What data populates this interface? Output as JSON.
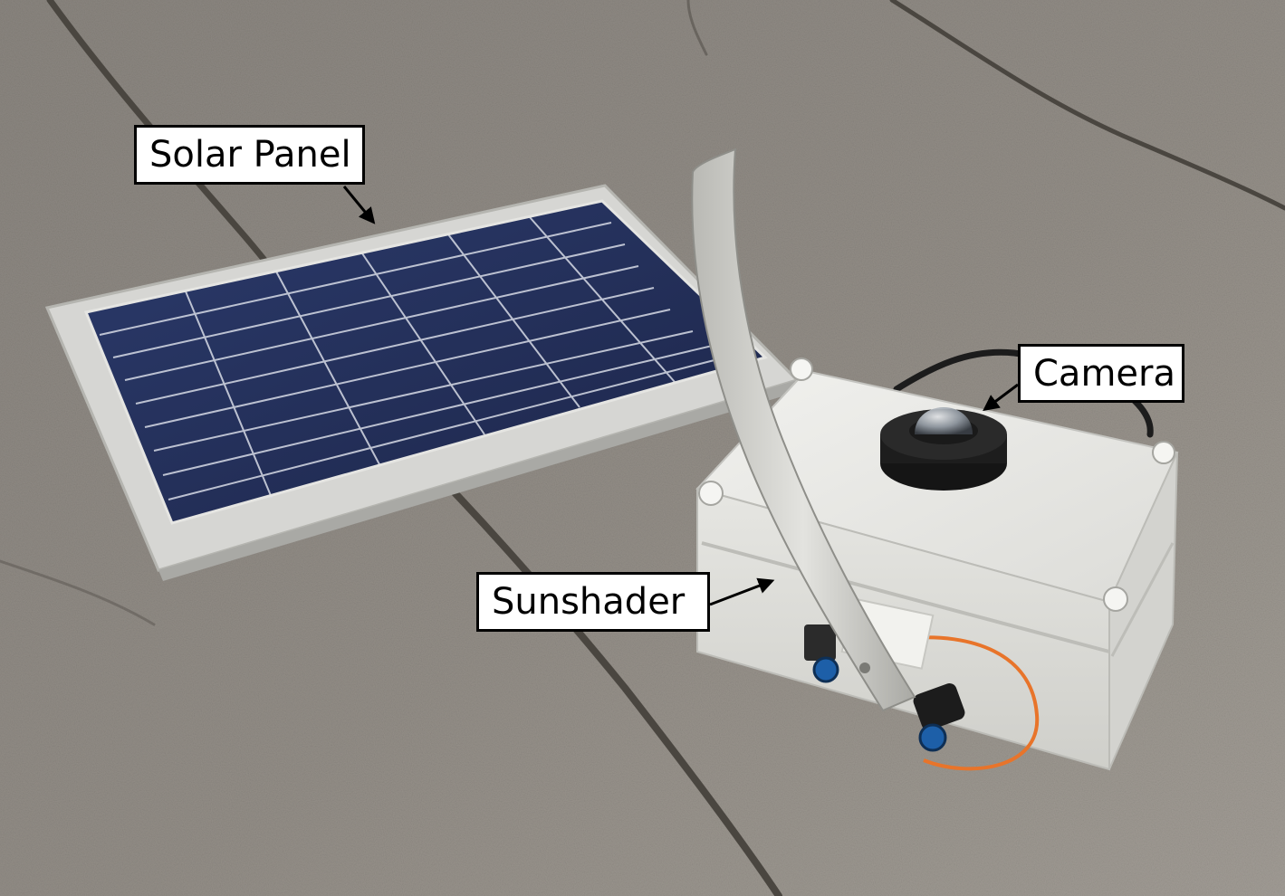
{
  "labels": {
    "solar_panel": "Solar Panel",
    "camera": "Camera",
    "sunshader": "Sunshader"
  },
  "colors": {
    "roof": "#8f8a84",
    "panel_cells": "#27345f",
    "panel_frame": "#d9d9d9",
    "enclosure": "#e9e9e6",
    "sunshader": "#c7c7c2",
    "label_bg": "#ffffff",
    "label_border": "#000000"
  }
}
